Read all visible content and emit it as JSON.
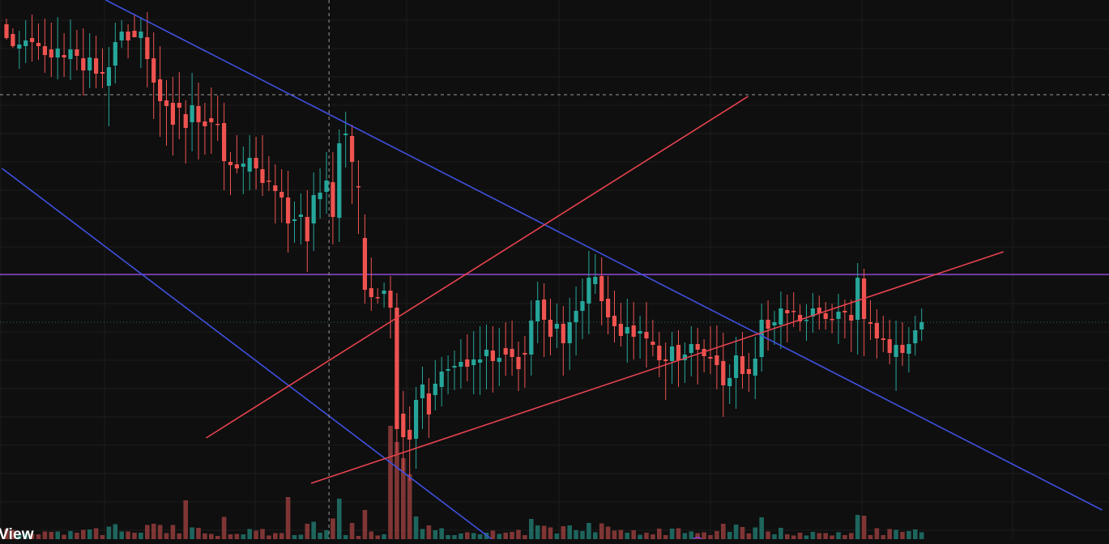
{
  "watermark": {
    "text": "View"
  },
  "colors": {
    "background": "#0f0f0f",
    "grid": "#1d1d1d",
    "up": "#26a69a",
    "down": "#ef5350",
    "volume_up": "#1f6f66",
    "volume_down": "#8d3a3a",
    "trend_blue": "#3f51e0",
    "trend_red": "#e8434f",
    "horizontal_level": "#8e44d4",
    "dotted_level": "#2e6b5a",
    "crosshair": "#9a9a9a"
  },
  "chart_data": {
    "type": "candlestick",
    "title": "",
    "xlabel": "",
    "ylabel": "",
    "ylim": [
      0,
      666
    ],
    "xlim": [
      0,
      173
    ],
    "grid": true,
    "legend": "none",
    "candles": [
      [
        30,
        7,
        47,
        2,
        -1
      ],
      [
        42,
        7,
        57,
        2,
        -1
      ],
      [
        55,
        17,
        60,
        25,
        1
      ],
      [
        50,
        25,
        57,
        21,
        1
      ],
      [
        52,
        29,
        47,
        24,
        -1
      ],
      [
        53,
        24,
        57,
        17,
        -1
      ],
      [
        57,
        34,
        68,
        22,
        -1
      ],
      [
        61,
        33,
        71,
        24,
        -1
      ],
      [
        71,
        39,
        60,
        27,
        1
      ],
      [
        68,
        27,
        71,
        24,
        -1
      ],
      [
        73,
        37,
        61,
        26,
        1
      ],
      [
        61,
        24,
        69,
        18,
        -1
      ],
      [
        72,
        37,
        87,
        31,
        -1
      ],
      [
        87,
        30,
        71,
        22,
        1
      ],
      [
        72,
        28,
        91,
        18,
        -1
      ],
      [
        89,
        29,
        91,
        18,
        -1
      ],
      [
        83,
        25,
        106,
        50,
        1
      ],
      [
        81,
        24,
        52,
        22,
        1
      ],
      [
        50,
        14,
        39,
        9,
        1
      ],
      [
        39,
        9,
        50,
        22,
        -1
      ],
      [
        38,
        21,
        46,
        0,
        -1
      ],
      [
        39,
        18,
        47,
        37,
        1
      ],
      [
        46,
        31,
        73,
        35,
        -1
      ],
      [
        72,
        32,
        102,
        45,
        -1
      ],
      [
        98,
        41,
        125,
        44,
        -1
      ],
      [
        124,
        25,
        131,
        49,
        -1
      ],
      [
        127,
        32,
        154,
        38,
        -1
      ],
      [
        127,
        38,
        133,
        39,
        -1
      ],
      [
        141,
        17,
        158,
        44,
        -1
      ],
      [
        130,
        40,
        151,
        36,
        1
      ],
      [
        131,
        29,
        151,
        46,
        -1
      ],
      [
        150,
        23,
        156,
        35,
        -1
      ],
      [
        146,
        38,
        151,
        39,
        -1
      ],
      [
        153,
        35,
        153,
        21,
        -1
      ],
      [
        152,
        25,
        199,
        36,
        -1
      ],
      [
        200,
        12,
        204,
        37,
        -1
      ],
      [
        203,
        36,
        208,
        6,
        -1
      ],
      [
        206,
        21,
        202,
        34,
        1
      ],
      [
        212,
        28,
        195,
        23,
        1
      ],
      [
        195,
        26,
        208,
        26,
        -1
      ],
      [
        209,
        42,
        226,
        16,
        -1
      ],
      [
        223,
        30,
        224,
        12,
        -1
      ],
      [
        229,
        26,
        236,
        40,
        -1
      ],
      [
        237,
        28,
        244,
        31,
        -1
      ],
      [
        244,
        33,
        276,
        36,
        -1
      ],
      [
        273,
        22,
        271,
        27,
        1
      ],
      [
        268,
        26,
        265,
        34,
        1
      ],
      [
        268,
        33,
        298,
        38,
        -1
      ],
      [
        241,
        28,
        276,
        34,
        1
      ],
      [
        238,
        30,
        246,
        24,
        1
      ],
      [
        223,
        35,
        237,
        27,
        1
      ],
      [
        225,
        37,
        268,
        34,
        -1
      ],
      [
        177,
        17,
        269,
        30,
        1
      ],
      [
        167,
        27,
        165,
        40,
        1
      ],
      [
        168,
        14,
        200,
        52,
        -1
      ],
      [
        230,
        32,
        230,
        59,
        -1
      ],
      [
        294,
        29,
        358,
        17,
        -1
      ],
      [
        356,
        38,
        367,
        17,
        -1
      ],
      [
        368,
        11,
        367,
        7,
        -1
      ],
      [
        363,
        10,
        359,
        17,
        1
      ],
      [
        359,
        18,
        380,
        38,
        -1
      ],
      [
        380,
        18,
        530,
        30,
        -1
      ],
      [
        511,
        28,
        540,
        42,
        -1
      ],
      [
        531,
        29,
        543,
        51,
        -1
      ],
      [
        542,
        16,
        494,
        37,
        1
      ],
      [
        475,
        22,
        492,
        38,
        1
      ],
      [
        486,
        19,
        512,
        29,
        -1
      ],
      [
        488,
        29,
        474,
        19,
        1
      ],
      [
        478,
        18,
        459,
        24,
        1
      ],
      [
        458,
        17,
        456,
        29,
        1
      ],
      [
        452,
        19,
        454,
        28,
        1
      ],
      [
        453,
        28,
        447,
        27,
        1
      ],
      [
        444,
        31,
        453,
        18,
        -1
      ],
      [
        451,
        35,
        444,
        36,
        1
      ],
      [
        448,
        41,
        444,
        40,
        1
      ],
      [
        440,
        31,
        432,
        41,
        1
      ],
      [
        433,
        30,
        446,
        39,
        -1
      ],
      [
        447,
        37,
        442,
        30,
        1
      ],
      [
        430,
        32,
        438,
        26,
        -1
      ],
      [
        431,
        35,
        441,
        23,
        -1
      ],
      [
        441,
        19,
        456,
        27,
        -1
      ],
      [
        436,
        21,
        438,
        41,
        -1
      ],
      [
        438,
        25,
        396,
        26,
        1
      ],
      [
        397,
        23,
        371,
        27,
        1
      ],
      [
        370,
        20,
        395,
        46,
        -1
      ],
      [
        395,
        26,
        416,
        23,
        -1
      ],
      [
        406,
        25,
        400,
        24,
        1
      ],
      [
        400,
        22,
        424,
        40,
        -1
      ],
      [
        424,
        30,
        398,
        33,
        1
      ],
      [
        398,
        30,
        384,
        41,
        1
      ],
      [
        384,
        28,
        372,
        35,
        1
      ],
      [
        375,
        33,
        343,
        38,
        1
      ],
      [
        351,
        28,
        342,
        12,
        1
      ],
      [
        341,
        23,
        372,
        30,
        -1
      ],
      [
        369,
        28,
        392,
        21,
        -1
      ],
      [
        390,
        31,
        403,
        20,
        -1
      ],
      [
        400,
        26,
        415,
        13,
        -1
      ],
      [
        412,
        35,
        404,
        36,
        1
      ],
      [
        402,
        29,
        416,
        28,
        -1
      ],
      [
        412,
        19,
        409,
        31,
        1
      ],
      [
        410,
        37,
        418,
        36,
        -1
      ],
      [
        422,
        27,
        426,
        14,
        -1
      ],
      [
        427,
        17,
        445,
        21,
        -1
      ],
      [
        444,
        21,
        446,
        48,
        -1
      ],
      [
        446,
        18,
        428,
        28,
        1
      ],
      [
        426,
        18,
        445,
        33,
        -1
      ],
      [
        445,
        15,
        438,
        28,
        1
      ],
      [
        436,
        22,
        425,
        29,
        1
      ],
      [
        425,
        20,
        432,
        43,
        -1
      ],
      [
        431,
        12,
        440,
        20,
        -1
      ],
      [
        441,
        38,
        443,
        19,
        -1
      ],
      [
        439,
        37,
        451,
        30,
        -1
      ],
      [
        446,
        35,
        476,
        39,
        -1
      ],
      [
        477,
        17,
        467,
        22,
        1
      ],
      [
        467,
        23,
        439,
        38,
        1
      ],
      [
        440,
        30,
        462,
        18,
        -1
      ],
      [
        456,
        20,
        462,
        22,
        -1
      ],
      [
        464,
        27,
        443,
        29,
        1
      ],
      [
        441,
        20,
        395,
        18,
        1
      ],
      [
        395,
        24,
        406,
        27,
        -1
      ],
      [
        402,
        14,
        398,
        24,
        1
      ],
      [
        401,
        21,
        381,
        30,
        1
      ],
      [
        383,
        19,
        387,
        36,
        -1
      ],
      [
        384,
        23,
        385,
        19,
        -1
      ],
      [
        389,
        13,
        397,
        12,
        -1
      ],
      [
        396,
        19,
        395,
        25,
        1
      ],
      [
        391,
        19,
        381,
        20,
        1
      ],
      [
        380,
        15,
        387,
        20,
        -1
      ],
      [
        387,
        14,
        394,
        13,
        -1
      ],
      [
        394,
        19,
        395,
        17,
        -1
      ],
      [
        394,
        22,
        385,
        31,
        1
      ],
      [
        384,
        14,
        386,
        32,
        -1
      ],
      [
        389,
        19,
        396,
        39,
        -1
      ],
      [
        395,
        18,
        343,
        43,
        1
      ],
      [
        344,
        12,
        394,
        46,
        -1
      ],
      [
        398,
        27,
        400,
        20,
        -1
      ],
      [
        399,
        17,
        418,
        25,
        -1
      ],
      [
        418,
        28,
        420,
        15,
        -1
      ],
      [
        419,
        24,
        436,
        14,
        -1
      ],
      [
        441,
        30,
        426,
        42,
        1
      ],
      [
        426,
        28,
        436,
        16,
        -1
      ],
      [
        437,
        21,
        425,
        23,
        1
      ],
      [
        424,
        18,
        408,
        15,
        1
      ],
      [
        407,
        17,
        398,
        14,
        1
      ]
    ],
    "trend_lines": [
      {
        "color": "trend_blue",
        "points": [
          [
            15.5,
            0
          ],
          [
            171.2,
            630
          ]
        ]
      },
      {
        "color": "trend_blue",
        "points": [
          [
            -0.7,
            208
          ],
          [
            75.8,
            666
          ]
        ]
      },
      {
        "color": "trend_red",
        "points": [
          [
            31.2,
            541
          ],
          [
            115.9,
            119
          ]
        ]
      },
      {
        "color": "trend_red",
        "points": [
          [
            47.6,
            597
          ],
          [
            155.8,
            311
          ]
        ]
      }
    ],
    "horizontal_levels": [
      {
        "color": "horizontal_level",
        "y": 339,
        "style": "solid"
      },
      {
        "color": "dotted_level",
        "y": 398,
        "style": "dotted"
      }
    ],
    "crosshair": {
      "x": 50.4,
      "y": 117
    }
  }
}
